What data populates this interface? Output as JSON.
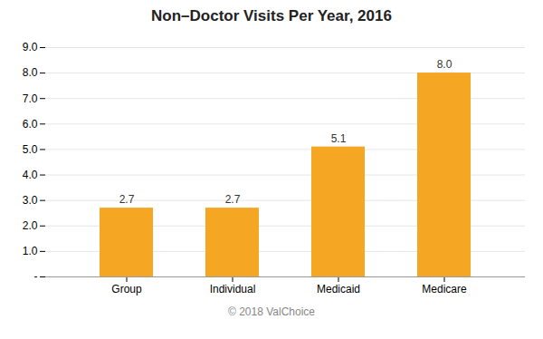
{
  "chart_data": {
    "type": "bar",
    "title": "Non–Doctor Visits Per Year, 2016",
    "categories": [
      "Group",
      "Individual",
      "Medicaid",
      "Medicare"
    ],
    "values": [
      2.7,
      2.7,
      5.1,
      8.0
    ],
    "value_labels": [
      "2.7",
      "2.7",
      "5.1",
      "8.0"
    ],
    "data_labels": true,
    "color": "#F5A623",
    "ylim": [
      0,
      9
    ],
    "yticks": [
      {
        "value": 0,
        "label": "-"
      },
      {
        "value": 1,
        "label": "1.0"
      },
      {
        "value": 2,
        "label": "2.0"
      },
      {
        "value": 3,
        "label": "3.0"
      },
      {
        "value": 4,
        "label": "4.0"
      },
      {
        "value": 5,
        "label": "5.0"
      },
      {
        "value": 6,
        "label": "6.0"
      },
      {
        "value": 7,
        "label": "7.0"
      },
      {
        "value": 8,
        "label": "8.0"
      },
      {
        "value": 9,
        "label": "9.0"
      }
    ],
    "grid": true,
    "caption": "© 2018 ValChoice"
  }
}
